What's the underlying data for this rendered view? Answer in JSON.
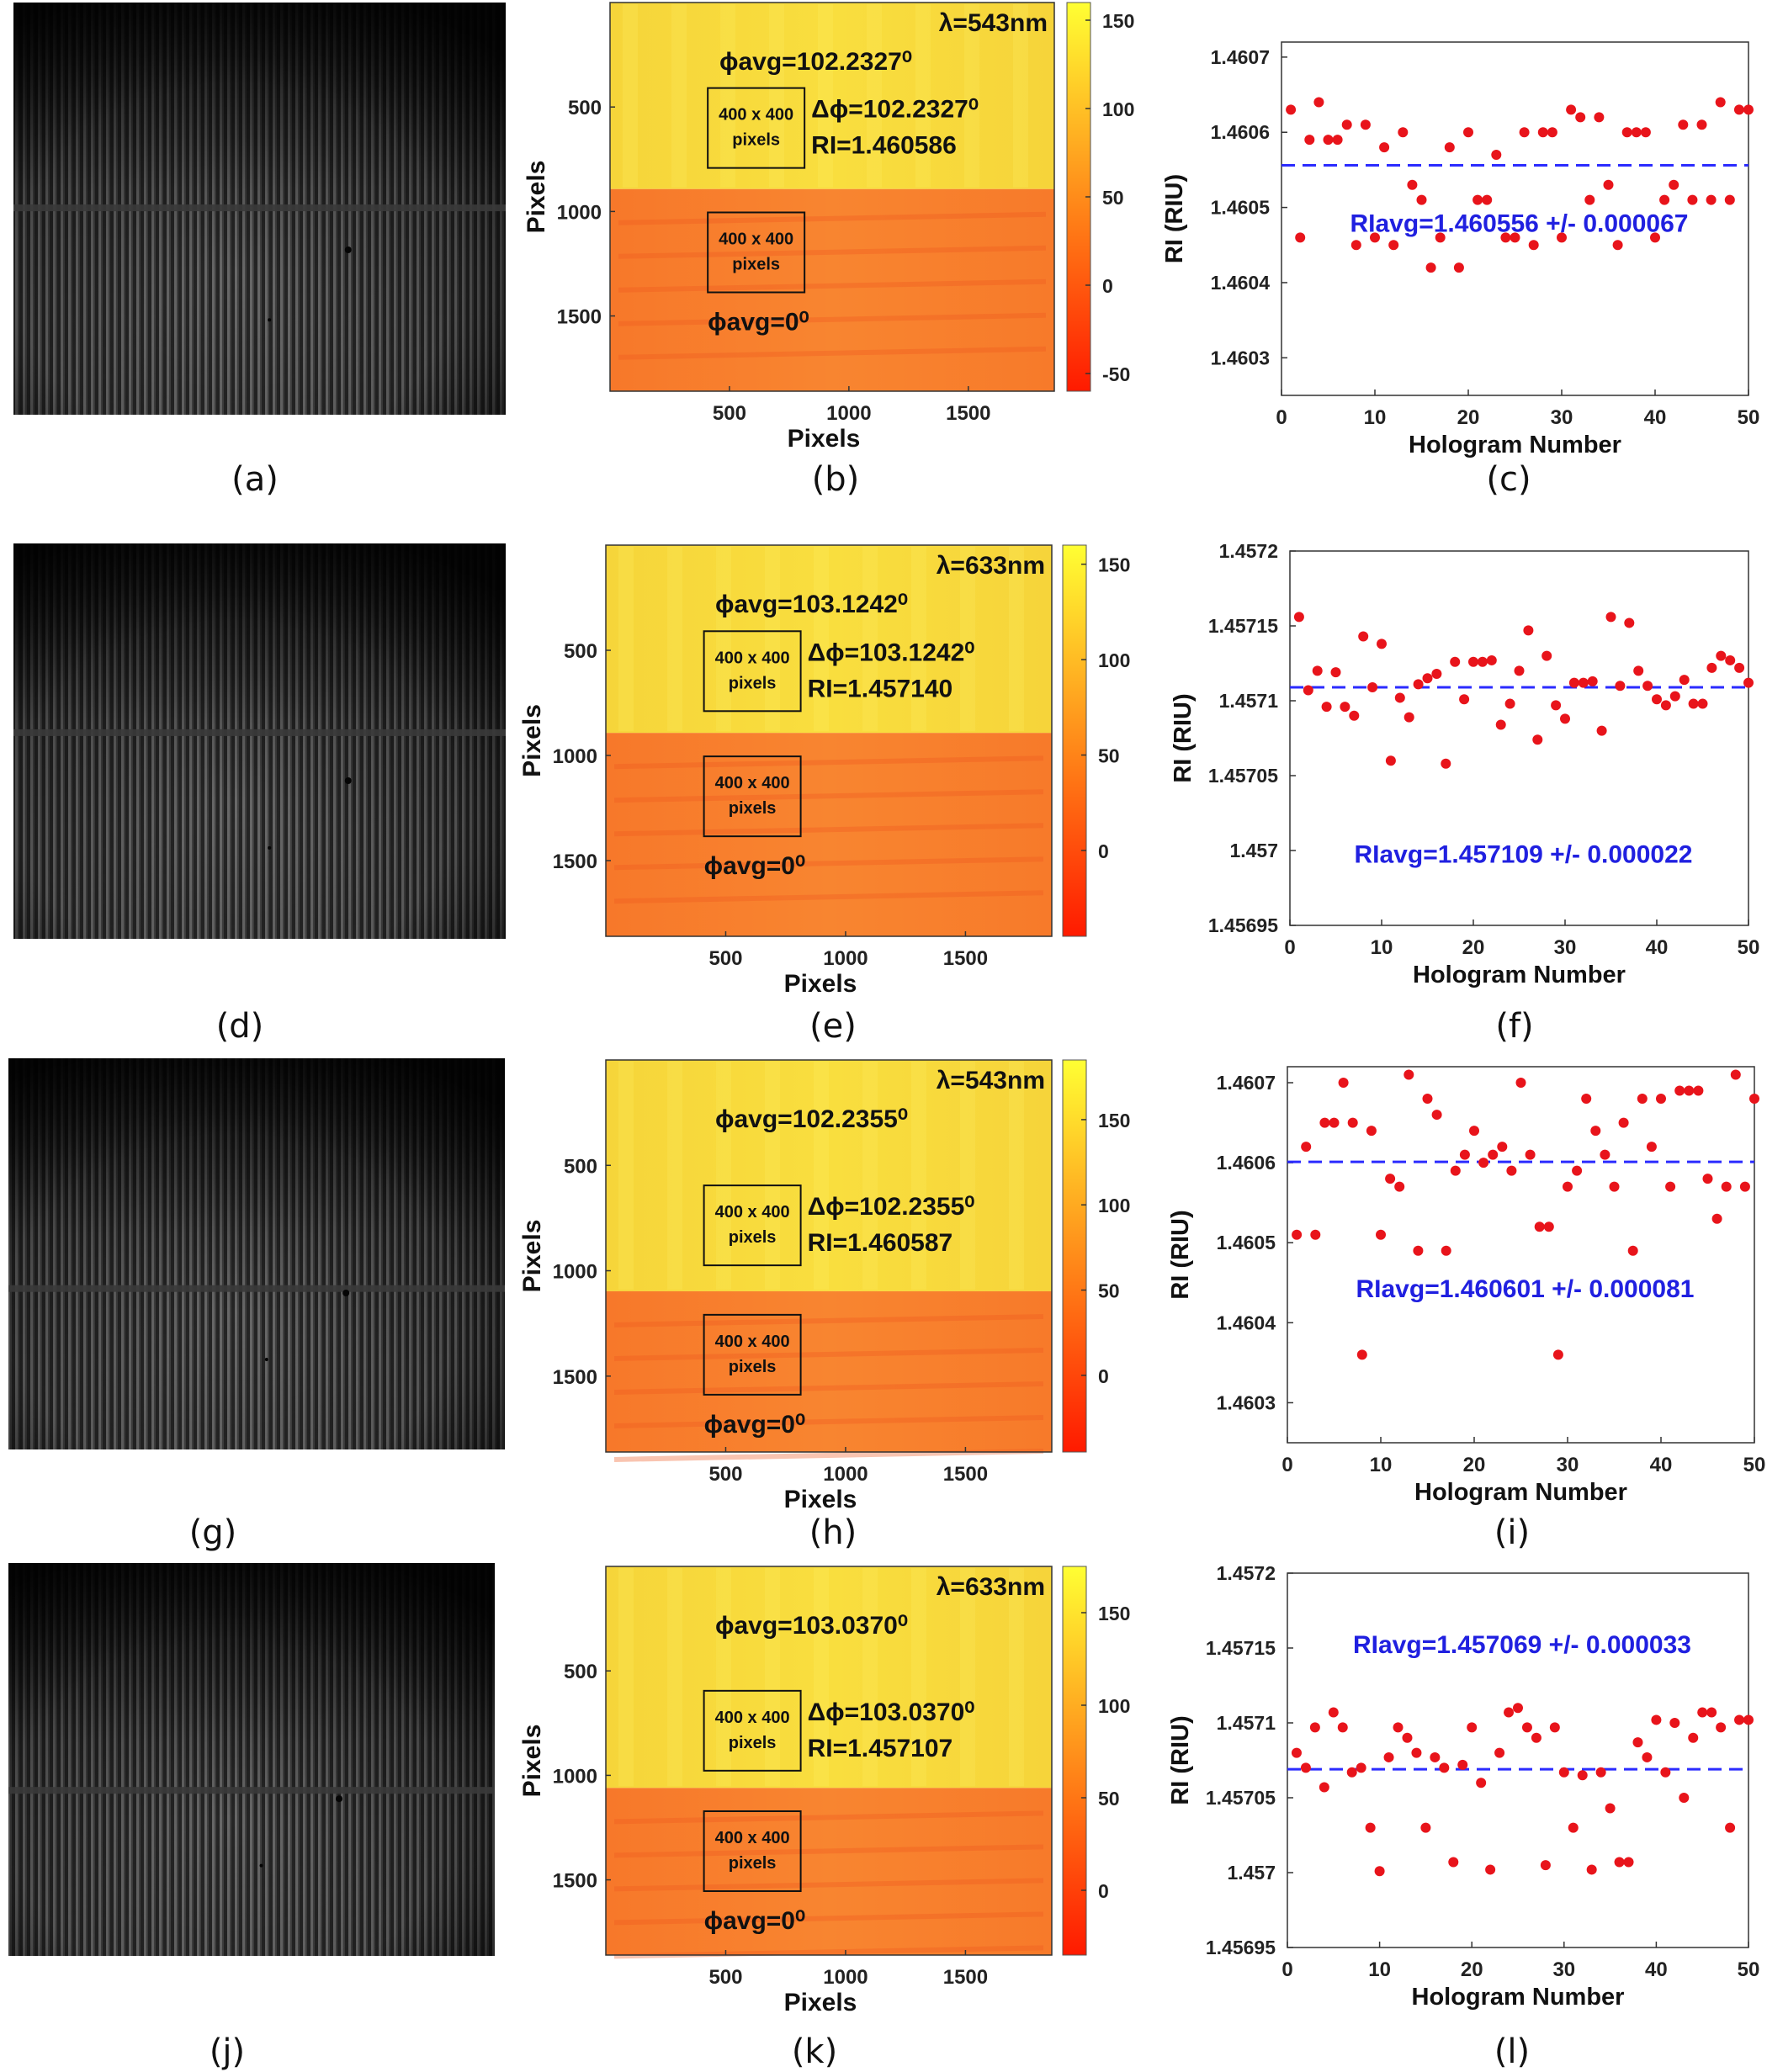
{
  "captions": [
    "(a)",
    "(b)",
    "(c)",
    "(d)",
    "(e)",
    "(f)",
    "(g)",
    "(h)",
    "(i)",
    "(j)",
    "(k)",
    "(l)"
  ],
  "colors": {
    "marker": "#e8141b",
    "avg_line": "#2b2bff",
    "avg_text": "#2020e0",
    "cmap_low": "#ff1a00",
    "cmap_mid": "#ff8c1a",
    "cmap_high": "#ffff33"
  },
  "rows": [
    {
      "phase_map": {
        "wavelength": "λ=543nm",
        "phi_avg_top": "ϕavg=102.2327⁰",
        "delta_phi": "Δϕ=102.2327⁰",
        "ri": "RI=1.460586",
        "box_label": [
          "400 x 400",
          "pixels"
        ],
        "phi_avg_bottom": "ϕavg=0⁰",
        "colorbar_ticks": [
          150,
          100,
          50,
          0,
          -50
        ],
        "colorbar_range": [
          -60,
          160
        ],
        "x_ticks": [
          500,
          1000,
          1500
        ],
        "y_ticks": [
          500,
          1000,
          1500
        ],
        "xlabel": "Pixels",
        "ylabel": "Pixels"
      },
      "chart_data": {
        "type": "scatter",
        "xlabel": "Hologram Number",
        "ylabel": "RI (RIU)",
        "xlim": [
          0,
          50
        ],
        "ylim": [
          1.46025,
          1.46072
        ],
        "x_ticks": [
          0,
          10,
          20,
          30,
          40,
          50
        ],
        "y_ticks": [
          "1.4603",
          "1.4604",
          "1.4605",
          "1.4606",
          "1.4607"
        ],
        "avg_value": 1.460556,
        "annotation": "RIavg=1.460556 +/- 0.000067",
        "series": [
          {
            "x": [
              1,
              2,
              3,
              4,
              5,
              6,
              7,
              8,
              9,
              10,
              11,
              12,
              13,
              14,
              15,
              16,
              17,
              18,
              19,
              20,
              21,
              22,
              23,
              24,
              25,
              26,
              27,
              28,
              29,
              30,
              31,
              32,
              33,
              34,
              35,
              36,
              37,
              38,
              39,
              40,
              41,
              42,
              43,
              44,
              45,
              46,
              47,
              48,
              49,
              50
            ],
            "values": [
              1.46063,
              1.46046,
              1.46059,
              1.46064,
              1.46059,
              1.46059,
              1.46061,
              1.46045,
              1.46061,
              1.46046,
              1.46058,
              1.46045,
              1.4606,
              1.46053,
              1.46051,
              1.46042,
              1.46046,
              1.46058,
              1.46042,
              1.4606,
              1.46051,
              1.46051,
              1.46057,
              1.46046,
              1.46046,
              1.4606,
              1.46045,
              1.4606,
              1.4606,
              1.46046,
              1.46063,
              1.46062,
              1.46051,
              1.46062,
              1.46053,
              1.46045,
              1.4606,
              1.4606,
              1.4606,
              1.46046,
              1.46051,
              1.46053,
              1.46061,
              1.46051,
              1.46061,
              1.46051,
              1.46064,
              1.46051,
              1.46063,
              1.46063
            ]
          }
        ]
      }
    },
    {
      "phase_map": {
        "wavelength": "λ=633nm",
        "phi_avg_top": "ϕavg=103.1242⁰",
        "delta_phi": "Δϕ=103.1242⁰",
        "ri": "RI=1.457140",
        "box_label": [
          "400 x 400",
          "pixels"
        ],
        "phi_avg_bottom": "ϕavg=0⁰",
        "colorbar_ticks": [
          150,
          100,
          50,
          0
        ],
        "colorbar_range": [
          -45,
          160
        ],
        "x_ticks": [
          500,
          1000,
          1500
        ],
        "y_ticks": [
          500,
          1000,
          1500
        ],
        "xlabel": "Pixels",
        "ylabel": "Pixels"
      },
      "chart_data": {
        "type": "scatter",
        "xlabel": "Hologram Number",
        "ylabel": "RI (RIU)",
        "xlim": [
          0,
          50
        ],
        "ylim": [
          1.45695,
          1.4572
        ],
        "x_ticks": [
          0,
          10,
          20,
          30,
          40,
          50
        ],
        "y_ticks": [
          "1.45695",
          "1.457",
          "1.45705",
          "1.4571",
          "1.45715",
          "1.4572"
        ],
        "avg_value": 1.457109,
        "annotation": "RIavg=1.457109 +/- 0.000022",
        "series": [
          {
            "x": [
              1,
              2,
              3,
              4,
              5,
              6,
              7,
              8,
              9,
              10,
              11,
              12,
              13,
              14,
              15,
              16,
              17,
              18,
              19,
              20,
              21,
              22,
              23,
              24,
              25,
              26,
              27,
              28,
              29,
              30,
              31,
              32,
              33,
              34,
              35,
              36,
              37,
              38,
              39,
              40,
              41,
              42,
              43,
              44,
              45,
              46,
              47,
              48,
              49,
              50
            ],
            "values": [
              1.457156,
              1.457107,
              1.45712,
              1.457096,
              1.457119,
              1.457096,
              1.45709,
              1.457143,
              1.457109,
              1.457138,
              1.45706,
              1.457102,
              1.457089,
              1.457111,
              1.457115,
              1.457118,
              1.457058,
              1.457126,
              1.457101,
              1.457126,
              1.457126,
              1.457127,
              1.457084,
              1.457098,
              1.45712,
              1.457147,
              1.457074,
              1.45713,
              1.457097,
              1.457088,
              1.457112,
              1.457112,
              1.457113,
              1.45708,
              1.457156,
              1.45711,
              1.457152,
              1.45712,
              1.45711,
              1.457101,
              1.457097,
              1.457103,
              1.457114,
              1.457098,
              1.457098,
              1.457122,
              1.45713,
              1.457127,
              1.457122,
              1.457112
            ]
          }
        ]
      }
    },
    {
      "phase_map": {
        "wavelength": "λ=543nm",
        "phi_avg_top": "ϕavg=102.2355⁰",
        "delta_phi": "Δϕ=102.2355⁰",
        "ri": "RI=1.460587",
        "box_label": [
          "400 x 400",
          "pixels"
        ],
        "phi_avg_bottom": "ϕavg=0⁰",
        "colorbar_ticks": [
          150,
          100,
          50,
          0
        ],
        "colorbar_range": [
          -45,
          185
        ],
        "x_ticks": [
          500,
          1000,
          1500
        ],
        "y_ticks": [
          500,
          1000,
          1500
        ],
        "xlabel": "Pixels",
        "ylabel": "Pixels"
      },
      "chart_data": {
        "type": "scatter",
        "xlabel": "Hologram Number",
        "ylabel": "RI (RIU)",
        "xlim": [
          0,
          50
        ],
        "ylim": [
          1.46025,
          1.46072
        ],
        "x_ticks": [
          0,
          10,
          20,
          30,
          40,
          50
        ],
        "y_ticks": [
          "1.4603",
          "1.4604",
          "1.4605",
          "1.4606",
          "1.4607"
        ],
        "avg_value": 1.460601,
        "annotation": "RIavg=1.460601 +/- 0.000081",
        "series": [
          {
            "x": [
              1,
              2,
              3,
              4,
              5,
              6,
              7,
              8,
              9,
              10,
              11,
              12,
              13,
              14,
              15,
              16,
              17,
              18,
              19,
              20,
              21,
              22,
              23,
              24,
              25,
              26,
              27,
              28,
              29,
              30,
              31,
              32,
              33,
              34,
              35,
              36,
              37,
              38,
              39,
              40,
              41,
              42,
              43,
              44,
              45,
              46,
              47,
              48,
              49,
              50
            ],
            "values": [
              1.46051,
              1.46062,
              1.46051,
              1.46065,
              1.46065,
              1.4607,
              1.46065,
              1.46036,
              1.46064,
              1.46051,
              1.46058,
              1.46057,
              1.46071,
              1.46049,
              1.46068,
              1.46066,
              1.46049,
              1.46059,
              1.46061,
              1.46064,
              1.4606,
              1.46061,
              1.46062,
              1.46059,
              1.4607,
              1.46061,
              1.46052,
              1.46052,
              1.46036,
              1.46057,
              1.46059,
              1.46068,
              1.46064,
              1.46061,
              1.46057,
              1.46065,
              1.46049,
              1.46068,
              1.46062,
              1.46068,
              1.46057,
              1.46069,
              1.46069,
              1.46069,
              1.46058,
              1.46053,
              1.46057,
              1.46071,
              1.46057,
              1.46068
            ]
          }
        ]
      }
    },
    {
      "phase_map": {
        "wavelength": "λ=633nm",
        "phi_avg_top": "ϕavg=103.0370⁰",
        "delta_phi": "Δϕ=103.0370⁰",
        "ri": "RI=1.457107",
        "box_label": [
          "400 x 400",
          "pixels"
        ],
        "phi_avg_bottom": "ϕavg=0⁰",
        "colorbar_ticks": [
          150,
          100,
          50,
          0
        ],
        "colorbar_range": [
          -35,
          175
        ],
        "x_ticks": [
          500,
          1000,
          1500
        ],
        "y_ticks": [
          500,
          1000,
          1500
        ],
        "xlabel": "Pixels",
        "ylabel": "Pixels"
      },
      "chart_data": {
        "type": "scatter",
        "xlabel": "Hologram Number",
        "ylabel": "RI (RIU)",
        "xlim": [
          0,
          50
        ],
        "ylim": [
          1.45695,
          1.4572
        ],
        "x_ticks": [
          0,
          10,
          20,
          30,
          40,
          50
        ],
        "y_ticks": [
          "1.45695",
          "1.457",
          "1.45705",
          "1.4571",
          "1.45715",
          "1.4572"
        ],
        "avg_value": 1.457069,
        "annotation": "RIavg=1.457069 +/- 0.000033",
        "series": [
          {
            "x": [
              1,
              2,
              3,
              4,
              5,
              6,
              7,
              8,
              9,
              10,
              11,
              12,
              13,
              14,
              15,
              16,
              17,
              18,
              19,
              20,
              21,
              22,
              23,
              24,
              25,
              26,
              27,
              28,
              29,
              30,
              31,
              32,
              33,
              34,
              35,
              36,
              37,
              38,
              39,
              40,
              41,
              42,
              43,
              44,
              45,
              46,
              47,
              48,
              49,
              50
            ],
            "values": [
              1.45708,
              1.45707,
              1.457097,
              1.457057,
              1.457107,
              1.457097,
              1.457067,
              1.45707,
              1.45703,
              1.457001,
              1.457077,
              1.457097,
              1.45709,
              1.45708,
              1.45703,
              1.457077,
              1.45707,
              1.457007,
              1.457072,
              1.457097,
              1.45706,
              1.457002,
              1.45708,
              1.457107,
              1.45711,
              1.457097,
              1.45709,
              1.457005,
              1.457097,
              1.457067,
              1.45703,
              1.457065,
              1.457002,
              1.457067,
              1.457043,
              1.457007,
              1.457007,
              1.457087,
              1.457077,
              1.457102,
              1.457067,
              1.4571,
              1.45705,
              1.45709,
              1.457107,
              1.457107,
              1.457097,
              1.45703,
              1.457102,
              1.457102
            ]
          }
        ]
      }
    }
  ]
}
